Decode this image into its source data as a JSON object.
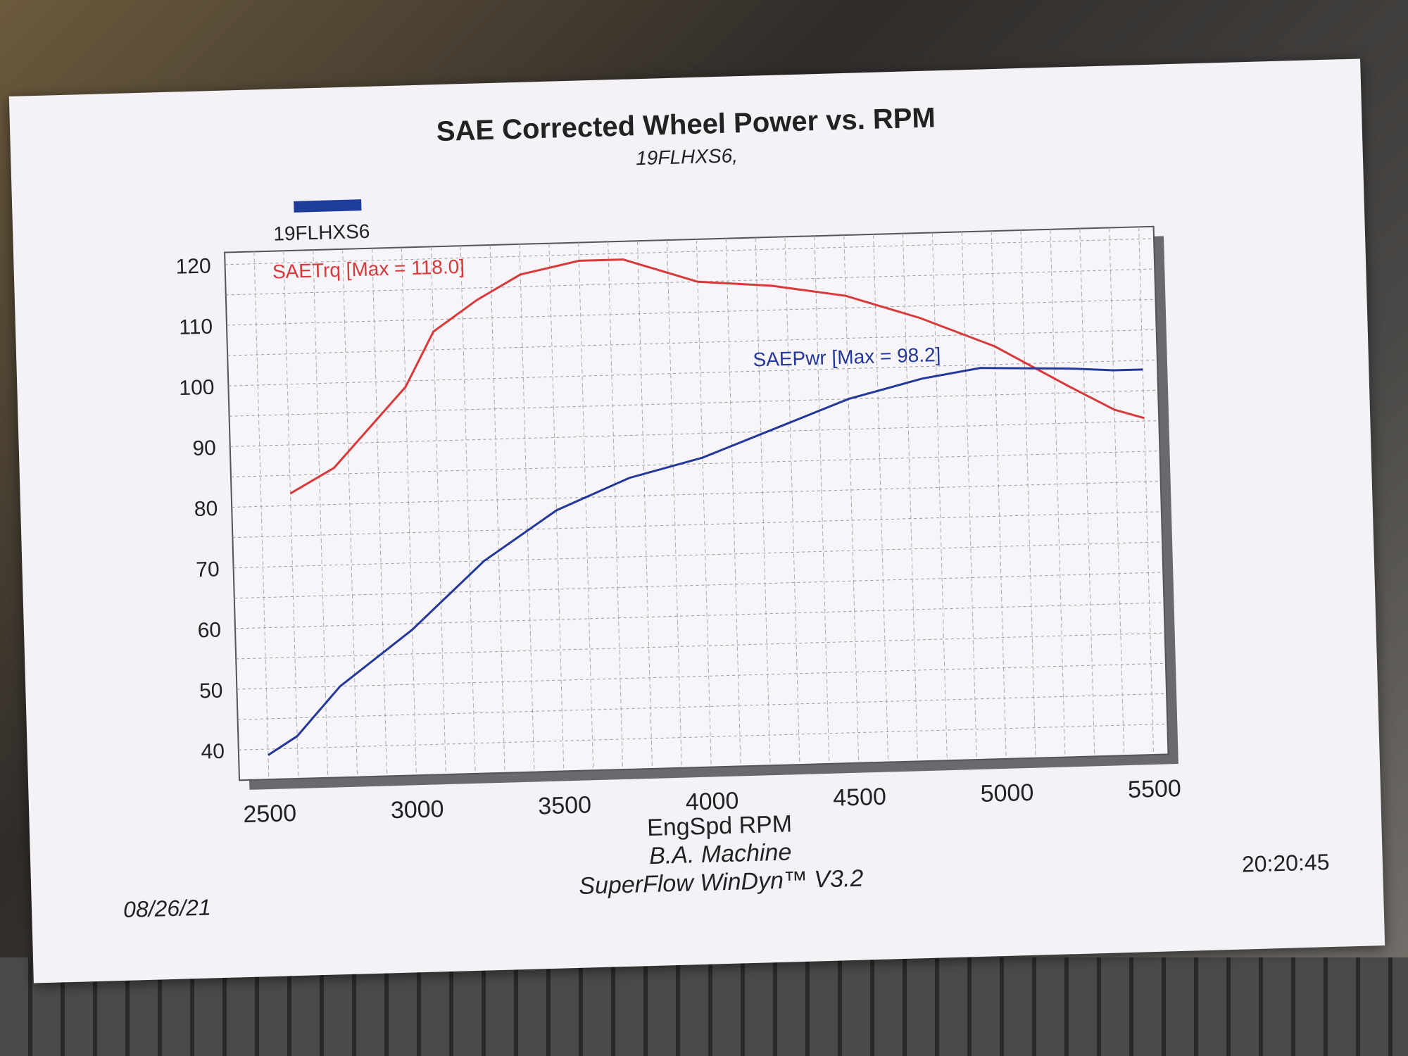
{
  "chart_data": {
    "type": "line",
    "title": "SAE Corrected Wheel Power vs. RPM",
    "subtitle": "19FLHXS6,",
    "legend": {
      "label": "19FLHXS6",
      "color": "#1e3c9c",
      "placement": "top-left"
    },
    "xlabel": "EngSpd RPM",
    "ylabel": "",
    "xlim": [
      2400,
      5550
    ],
    "ylim": [
      35,
      122
    ],
    "x_ticks": [
      2500,
      3000,
      3500,
      4000,
      4500,
      5000,
      5500
    ],
    "y_ticks": [
      40,
      50,
      60,
      70,
      80,
      90,
      100,
      110,
      120
    ],
    "grid": true,
    "series": [
      {
        "name": "SAETrq [Max = 118.0]",
        "color": "#d8393a",
        "x": [
          2600,
          2750,
          3000,
          3100,
          3250,
          3400,
          3600,
          3750,
          4000,
          4250,
          4500,
          4750,
          5000,
          5250,
          5400,
          5500
        ],
        "y": [
          82,
          86,
          99,
          108,
          113,
          117,
          119,
          119,
          115,
          114,
          112,
          108,
          103,
          96,
          92,
          90.5
        ]
      },
      {
        "name": "SAEPwr [Max = 98.2]",
        "color": "#23389a",
        "x": [
          2500,
          2600,
          2750,
          3000,
          3250,
          3500,
          3750,
          4000,
          4250,
          4500,
          4750,
          4950,
          5250,
          5400,
          5500
        ],
        "y": [
          39,
          42,
          50,
          59,
          70,
          78,
          83,
          86,
          90.5,
          95,
          98,
          99.5,
          99,
          98.5,
          98.5
        ]
      }
    ]
  },
  "footer": {
    "company": "B.A. Machine",
    "software": "SuperFlow WinDyn™ V3.2",
    "date": "08/26/21",
    "time": "20:20:45"
  }
}
